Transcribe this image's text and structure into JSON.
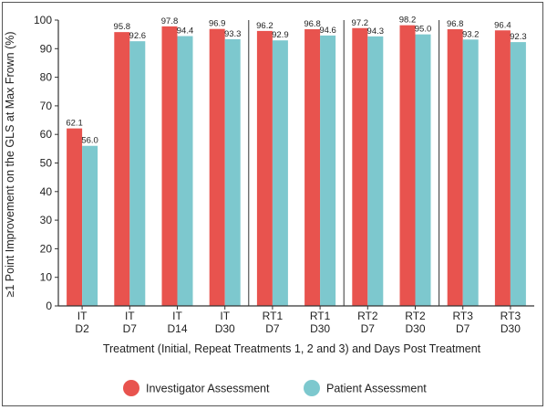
{
  "chart_data": {
    "type": "bar",
    "ylabel": "≥1 Point Improvement on the GLS at Max Frown (%)",
    "xlabel": "Treatment (Initial, Repeat Treatments 1, 2 and 3) and Days Post Treatment",
    "ylim": [
      0,
      100
    ],
    "yticks": [
      "0",
      "10",
      "20",
      "30",
      "40",
      "50",
      "60",
      "70",
      "80",
      "90",
      "100"
    ],
    "categories": [
      {
        "line1": "IT",
        "line2": "D2"
      },
      {
        "line1": "IT",
        "line2": "D7"
      },
      {
        "line1": "IT",
        "line2": "D14"
      },
      {
        "line1": "IT",
        "line2": "D30"
      },
      {
        "line1": "RT1",
        "line2": "D7"
      },
      {
        "line1": "RT1",
        "line2": "D30"
      },
      {
        "line1": "RT2",
        "line2": "D7"
      },
      {
        "line1": "RT2",
        "line2": "D30"
      },
      {
        "line1": "RT3",
        "line2": "D7"
      },
      {
        "line1": "RT3",
        "line2": "D30"
      }
    ],
    "series": [
      {
        "name": "Investigator Assessment",
        "color": "#E8534E",
        "values": [
          62.1,
          95.8,
          97.8,
          96.9,
          96.2,
          96.8,
          97.2,
          98.2,
          96.8,
          96.4
        ],
        "labels": [
          "62.1",
          "95.8",
          "97.8",
          "96.9",
          "96.2",
          "96.8",
          "97.2",
          "98.2",
          "96.8",
          "96.4"
        ]
      },
      {
        "name": "Patient Assessment",
        "color": "#7DC8CE",
        "values": [
          56.0,
          92.6,
          94.4,
          93.3,
          92.9,
          94.6,
          94.3,
          95.0,
          93.2,
          92.3
        ],
        "labels": [
          "56.0",
          "92.6",
          "94.4",
          "93.3",
          "92.9",
          "94.6",
          "94.3",
          "95.0",
          "93.2",
          "92.3"
        ]
      }
    ],
    "group_separators_after": [
      3,
      5,
      7
    ],
    "grid": false,
    "legend_position": "bottom"
  }
}
